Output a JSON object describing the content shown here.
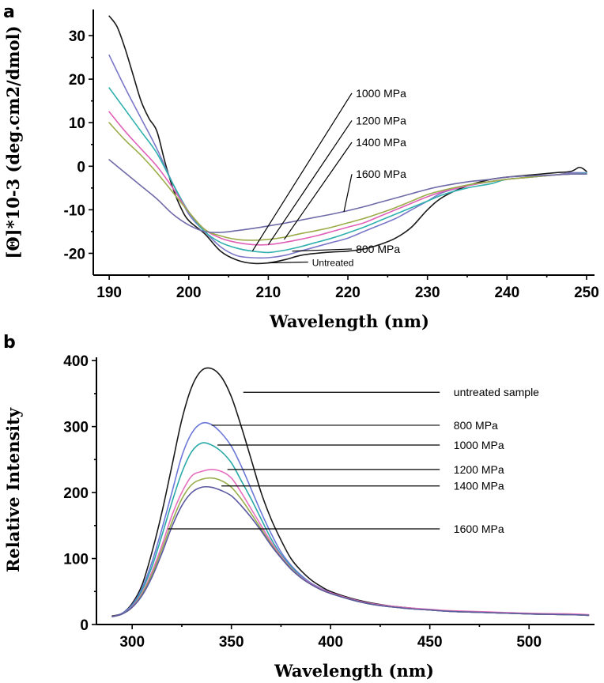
{
  "chart_data": [
    {
      "panel": "a",
      "type": "line",
      "xlabel": "Wavelength (nm)",
      "ylabel": "[Θ]*10-3 (deg.cm2/dmol)",
      "xlim": [
        188,
        251
      ],
      "ylim": [
        -25,
        36
      ],
      "xticks": [
        190,
        200,
        210,
        220,
        230,
        240,
        250
      ],
      "yticks": [
        -20,
        -10,
        0,
        10,
        20,
        30
      ],
      "grid": false,
      "legend": "annotations with leader lines",
      "series": [
        {
          "name": "Untreated",
          "color": "#1a1a1a",
          "x": [
            190,
            191,
            192,
            193,
            194,
            195,
            196,
            197,
            198,
            199,
            200,
            202,
            204,
            206,
            208,
            210,
            212,
            214,
            216,
            218,
            220,
            222,
            224,
            226,
            228,
            230,
            232,
            235,
            238,
            240,
            243,
            246,
            248,
            249,
            249.5,
            250
          ],
          "y": [
            34.5,
            32,
            27,
            21,
            15,
            11,
            8,
            1,
            -5,
            -9.5,
            -12.5,
            -15.5,
            -19.5,
            -21.5,
            -22.3,
            -22.2,
            -21.5,
            -20.5,
            -20,
            -19.7,
            -19.5,
            -19,
            -18,
            -16.5,
            -14,
            -10,
            -7,
            -4.5,
            -3,
            -2.5,
            -2,
            -1.5,
            -1.2,
            -0.3,
            -0.5,
            -1.2
          ]
        },
        {
          "name": "800 MPa",
          "color": "#7b78c8",
          "x": [
            190,
            192,
            194,
            196,
            198,
            200,
            202,
            204,
            206,
            208,
            210,
            212,
            214,
            216,
            218,
            220,
            222,
            224,
            226,
            228,
            230,
            232,
            235,
            238,
            240,
            243,
            246,
            248,
            250
          ],
          "y": [
            25.5,
            18,
            11,
            4,
            -4,
            -11,
            -15,
            -18.5,
            -20.5,
            -21,
            -21,
            -20.5,
            -19.5,
            -18.5,
            -17.5,
            -16.5,
            -15,
            -13.5,
            -12,
            -10,
            -8,
            -6,
            -4.5,
            -3.5,
            -3,
            -2.5,
            -2,
            -1.5,
            -1.5
          ]
        },
        {
          "name": "1000 MPa",
          "color": "#2fb0ae",
          "x": [
            190,
            192,
            194,
            196,
            198,
            200,
            202,
            204,
            206,
            208,
            210,
            212,
            214,
            216,
            218,
            220,
            222,
            224,
            226,
            228,
            230,
            232,
            235,
            238,
            240,
            243,
            246,
            248,
            250
          ],
          "y": [
            18,
            13,
            8,
            3,
            -4,
            -10.5,
            -15,
            -17.5,
            -18.8,
            -19.5,
            -19.8,
            -19.3,
            -18.5,
            -17.5,
            -16.5,
            -15.3,
            -14,
            -12.5,
            -11,
            -9.5,
            -8,
            -6.5,
            -5,
            -4,
            -3,
            -2.5,
            -2,
            -1.8,
            -1.6
          ]
        },
        {
          "name": "1200 MPa",
          "color": "#e060b8",
          "x": [
            190,
            192,
            194,
            196,
            198,
            200,
            202,
            204,
            206,
            208,
            210,
            212,
            214,
            216,
            218,
            220,
            222,
            224,
            226,
            228,
            230,
            232,
            235,
            238,
            240,
            243,
            246,
            248,
            250
          ],
          "y": [
            12.5,
            8,
            4,
            0,
            -5,
            -10.5,
            -14.5,
            -16.5,
            -17.5,
            -18,
            -18,
            -17.5,
            -16.8,
            -16,
            -15,
            -14,
            -13,
            -11.5,
            -10,
            -8.5,
            -7,
            -5.8,
            -4.5,
            -3.5,
            -3,
            -2.5,
            -2,
            -1.8,
            -1.8
          ]
        },
        {
          "name": "1400 MPa",
          "color": "#9aac48",
          "x": [
            190,
            192,
            194,
            196,
            198,
            200,
            202,
            204,
            206,
            208,
            210,
            212,
            214,
            216,
            218,
            220,
            222,
            224,
            226,
            228,
            230,
            232,
            235,
            238,
            240,
            243,
            246,
            248,
            250
          ],
          "y": [
            10,
            6,
            2.5,
            -1.5,
            -6,
            -10.5,
            -14.5,
            -16,
            -16.8,
            -17,
            -16.8,
            -16.3,
            -15.5,
            -14.8,
            -14,
            -13,
            -12,
            -10.8,
            -9.5,
            -8,
            -6.5,
            -5.5,
            -4.3,
            -3.5,
            -3,
            -2.5,
            -2,
            -1.8,
            -1.8
          ]
        },
        {
          "name": "1600 MPa",
          "color": "#6f6aa8",
          "x": [
            190,
            192,
            194,
            196,
            198,
            200,
            202,
            204,
            206,
            208,
            210,
            212,
            214,
            216,
            218,
            220,
            222,
            224,
            226,
            228,
            230,
            232,
            235,
            238,
            240,
            243,
            246,
            248,
            250
          ],
          "y": [
            1.5,
            -1.5,
            -4.5,
            -7.5,
            -11,
            -13.5,
            -15,
            -15.2,
            -14.8,
            -14.3,
            -13.7,
            -13.1,
            -12.4,
            -11.7,
            -11,
            -10.2,
            -9.3,
            -8.3,
            -7.3,
            -6.3,
            -5.3,
            -4.5,
            -3.6,
            -3,
            -2.5,
            -2.2,
            -2,
            -1.8,
            -1.8
          ]
        }
      ],
      "annotations": [
        {
          "text": "1000 MPa",
          "label_x": 221,
          "label_y": 16.8,
          "leader_from": [
            220.5,
            16.8
          ],
          "leader_to": [
            208,
            -19.5
          ]
        },
        {
          "text": "1200 MPa",
          "label_x": 221,
          "label_y": 10.5,
          "leader_from": [
            220.5,
            10.5
          ],
          "leader_to": [
            210,
            -18
          ]
        },
        {
          "text": "1400 MPa",
          "label_x": 221,
          "label_y": 5.5,
          "leader_from": [
            220.5,
            5.5
          ],
          "leader_to": [
            212,
            -16.8
          ]
        },
        {
          "text": "1600 MPa",
          "label_x": 221,
          "label_y": -1.8,
          "leader_from": [
            220.5,
            -1.8
          ],
          "leader_to": [
            219.5,
            -10.5
          ]
        },
        {
          "text": "800 MPa",
          "label_x": 221,
          "label_y": -19,
          "leader_from": [
            220.5,
            -19
          ],
          "leader_to": [
            213,
            -19.5
          ]
        },
        {
          "text": "Untreated",
          "label_x": 215.5,
          "label_y": -22,
          "leader_from": [
            215,
            -22
          ],
          "leader_to": [
            210,
            -22.2
          ]
        }
      ]
    },
    {
      "panel": "b",
      "type": "line",
      "xlabel": "Wavelength (nm)",
      "ylabel": "Relative Intensity",
      "xlim": [
        282,
        533
      ],
      "ylim": [
        0,
        405
      ],
      "xticks": [
        300,
        350,
        400,
        450,
        500
      ],
      "yticks": [
        0,
        100,
        200,
        300,
        400
      ],
      "grid": false,
      "legend": "annotations with leader lines",
      "series": [
        {
          "name": "untreated sample",
          "color": "#1a1a1a",
          "x": [
            290,
            295,
            300,
            305,
            310,
            315,
            320,
            325,
            330,
            335,
            340,
            345,
            350,
            355,
            360,
            365,
            370,
            375,
            380,
            385,
            390,
            395,
            400,
            410,
            420,
            430,
            440,
            450,
            460,
            480,
            500,
            520,
            530
          ],
          "y": [
            13,
            17,
            32,
            60,
            110,
            170,
            240,
            310,
            360,
            385,
            388,
            375,
            345,
            300,
            250,
            200,
            160,
            128,
            100,
            82,
            68,
            58,
            50,
            40,
            33,
            28,
            25,
            22,
            20,
            18,
            16,
            15,
            14
          ]
        },
        {
          "name": "800 MPa",
          "color": "#6c78d8",
          "x": [
            290,
            295,
            300,
            305,
            310,
            315,
            320,
            325,
            330,
            335,
            340,
            345,
            350,
            355,
            360,
            365,
            370,
            375,
            380,
            385,
            390,
            395,
            400,
            410,
            420,
            430,
            440,
            450,
            460,
            480,
            500,
            520,
            530
          ],
          "y": [
            12,
            17,
            30,
            55,
            95,
            145,
            200,
            255,
            290,
            305,
            303,
            290,
            270,
            240,
            205,
            170,
            138,
            110,
            90,
            75,
            63,
            55,
            48,
            38,
            31,
            27,
            24,
            22,
            20,
            18,
            16,
            15,
            14
          ]
        },
        {
          "name": "1000 MPa",
          "color": "#2aa8a8",
          "x": [
            290,
            295,
            300,
            305,
            310,
            315,
            320,
            325,
            330,
            335,
            340,
            345,
            350,
            355,
            360,
            365,
            370,
            375,
            380,
            385,
            390,
            395,
            400,
            410,
            420,
            430,
            440,
            450,
            460,
            480,
            500,
            520,
            530
          ],
          "y": [
            12,
            16,
            28,
            52,
            88,
            135,
            185,
            230,
            262,
            275,
            272,
            262,
            245,
            218,
            190,
            160,
            130,
            106,
            88,
            73,
            62,
            54,
            47,
            38,
            31,
            27,
            24,
            22,
            20,
            18,
            16,
            15,
            14
          ]
        },
        {
          "name": "1200 MPa",
          "color": "#e870c0",
          "x": [
            290,
            295,
            300,
            305,
            310,
            315,
            320,
            325,
            330,
            335,
            340,
            345,
            350,
            355,
            360,
            365,
            370,
            375,
            380,
            385,
            390,
            395,
            400,
            410,
            420,
            430,
            440,
            450,
            460,
            480,
            500,
            520,
            530
          ],
          "y": [
            12,
            16,
            27,
            48,
            80,
            120,
            165,
            200,
            225,
            232,
            235,
            232,
            222,
            200,
            175,
            150,
            125,
            104,
            86,
            72,
            62,
            54,
            48,
            39,
            32,
            28,
            25,
            23,
            21,
            19,
            17,
            16,
            15
          ]
        },
        {
          "name": "1400 MPa",
          "color": "#98ac4c",
          "x": [
            290,
            295,
            300,
            305,
            310,
            315,
            320,
            325,
            330,
            335,
            340,
            345,
            350,
            355,
            360,
            365,
            370,
            375,
            380,
            385,
            390,
            395,
            400,
            410,
            420,
            430,
            440,
            450,
            460,
            480,
            500,
            520,
            530
          ],
          "y": [
            12,
            16,
            26,
            46,
            76,
            114,
            155,
            190,
            212,
            220,
            222,
            218,
            208,
            190,
            168,
            145,
            122,
            102,
            85,
            71,
            61,
            53,
            47,
            38,
            31,
            27,
            24,
            22,
            20,
            18,
            16,
            15,
            14
          ]
        },
        {
          "name": "1600 MPa",
          "color": "#5a58a0",
          "x": [
            290,
            295,
            300,
            305,
            310,
            315,
            320,
            325,
            330,
            335,
            340,
            345,
            350,
            355,
            360,
            365,
            370,
            375,
            380,
            385,
            390,
            395,
            400,
            410,
            420,
            430,
            440,
            450,
            460,
            480,
            500,
            520,
            530
          ],
          "y": [
            12,
            16,
            26,
            44,
            72,
            108,
            148,
            180,
            200,
            208,
            208,
            203,
            195,
            180,
            162,
            142,
            120,
            101,
            84,
            71,
            61,
            53,
            47,
            38,
            31,
            27,
            24,
            22,
            20,
            18,
            16,
            15,
            14
          ]
        }
      ],
      "annotations": [
        {
          "text": "untreated sample",
          "label_x": 462,
          "label_y": 352,
          "leader_from": [
            455,
            352
          ],
          "leader_to": [
            356,
            352
          ]
        },
        {
          "text": "800 MPa",
          "label_x": 462,
          "label_y": 302,
          "leader_from": [
            455,
            302
          ],
          "leader_to": [
            340,
            302
          ]
        },
        {
          "text": "1000 MPa",
          "label_x": 462,
          "label_y": 272,
          "leader_from": [
            455,
            272
          ],
          "leader_to": [
            343,
            272
          ]
        },
        {
          "text": "1200 MPa",
          "label_x": 462,
          "label_y": 235,
          "leader_from": [
            455,
            235
          ],
          "leader_to": [
            348,
            235
          ]
        },
        {
          "text": "1400 MPa",
          "label_x": 462,
          "label_y": 210,
          "leader_from": [
            455,
            210
          ],
          "leader_to": [
            345,
            210
          ]
        },
        {
          "text": "1600 MPa",
          "label_x": 462,
          "label_y": 145,
          "leader_from": [
            455,
            145
          ],
          "leader_to": [
            318,
            145
          ]
        }
      ]
    }
  ],
  "panels": {
    "a_letter": "a",
    "b_letter": "b"
  }
}
